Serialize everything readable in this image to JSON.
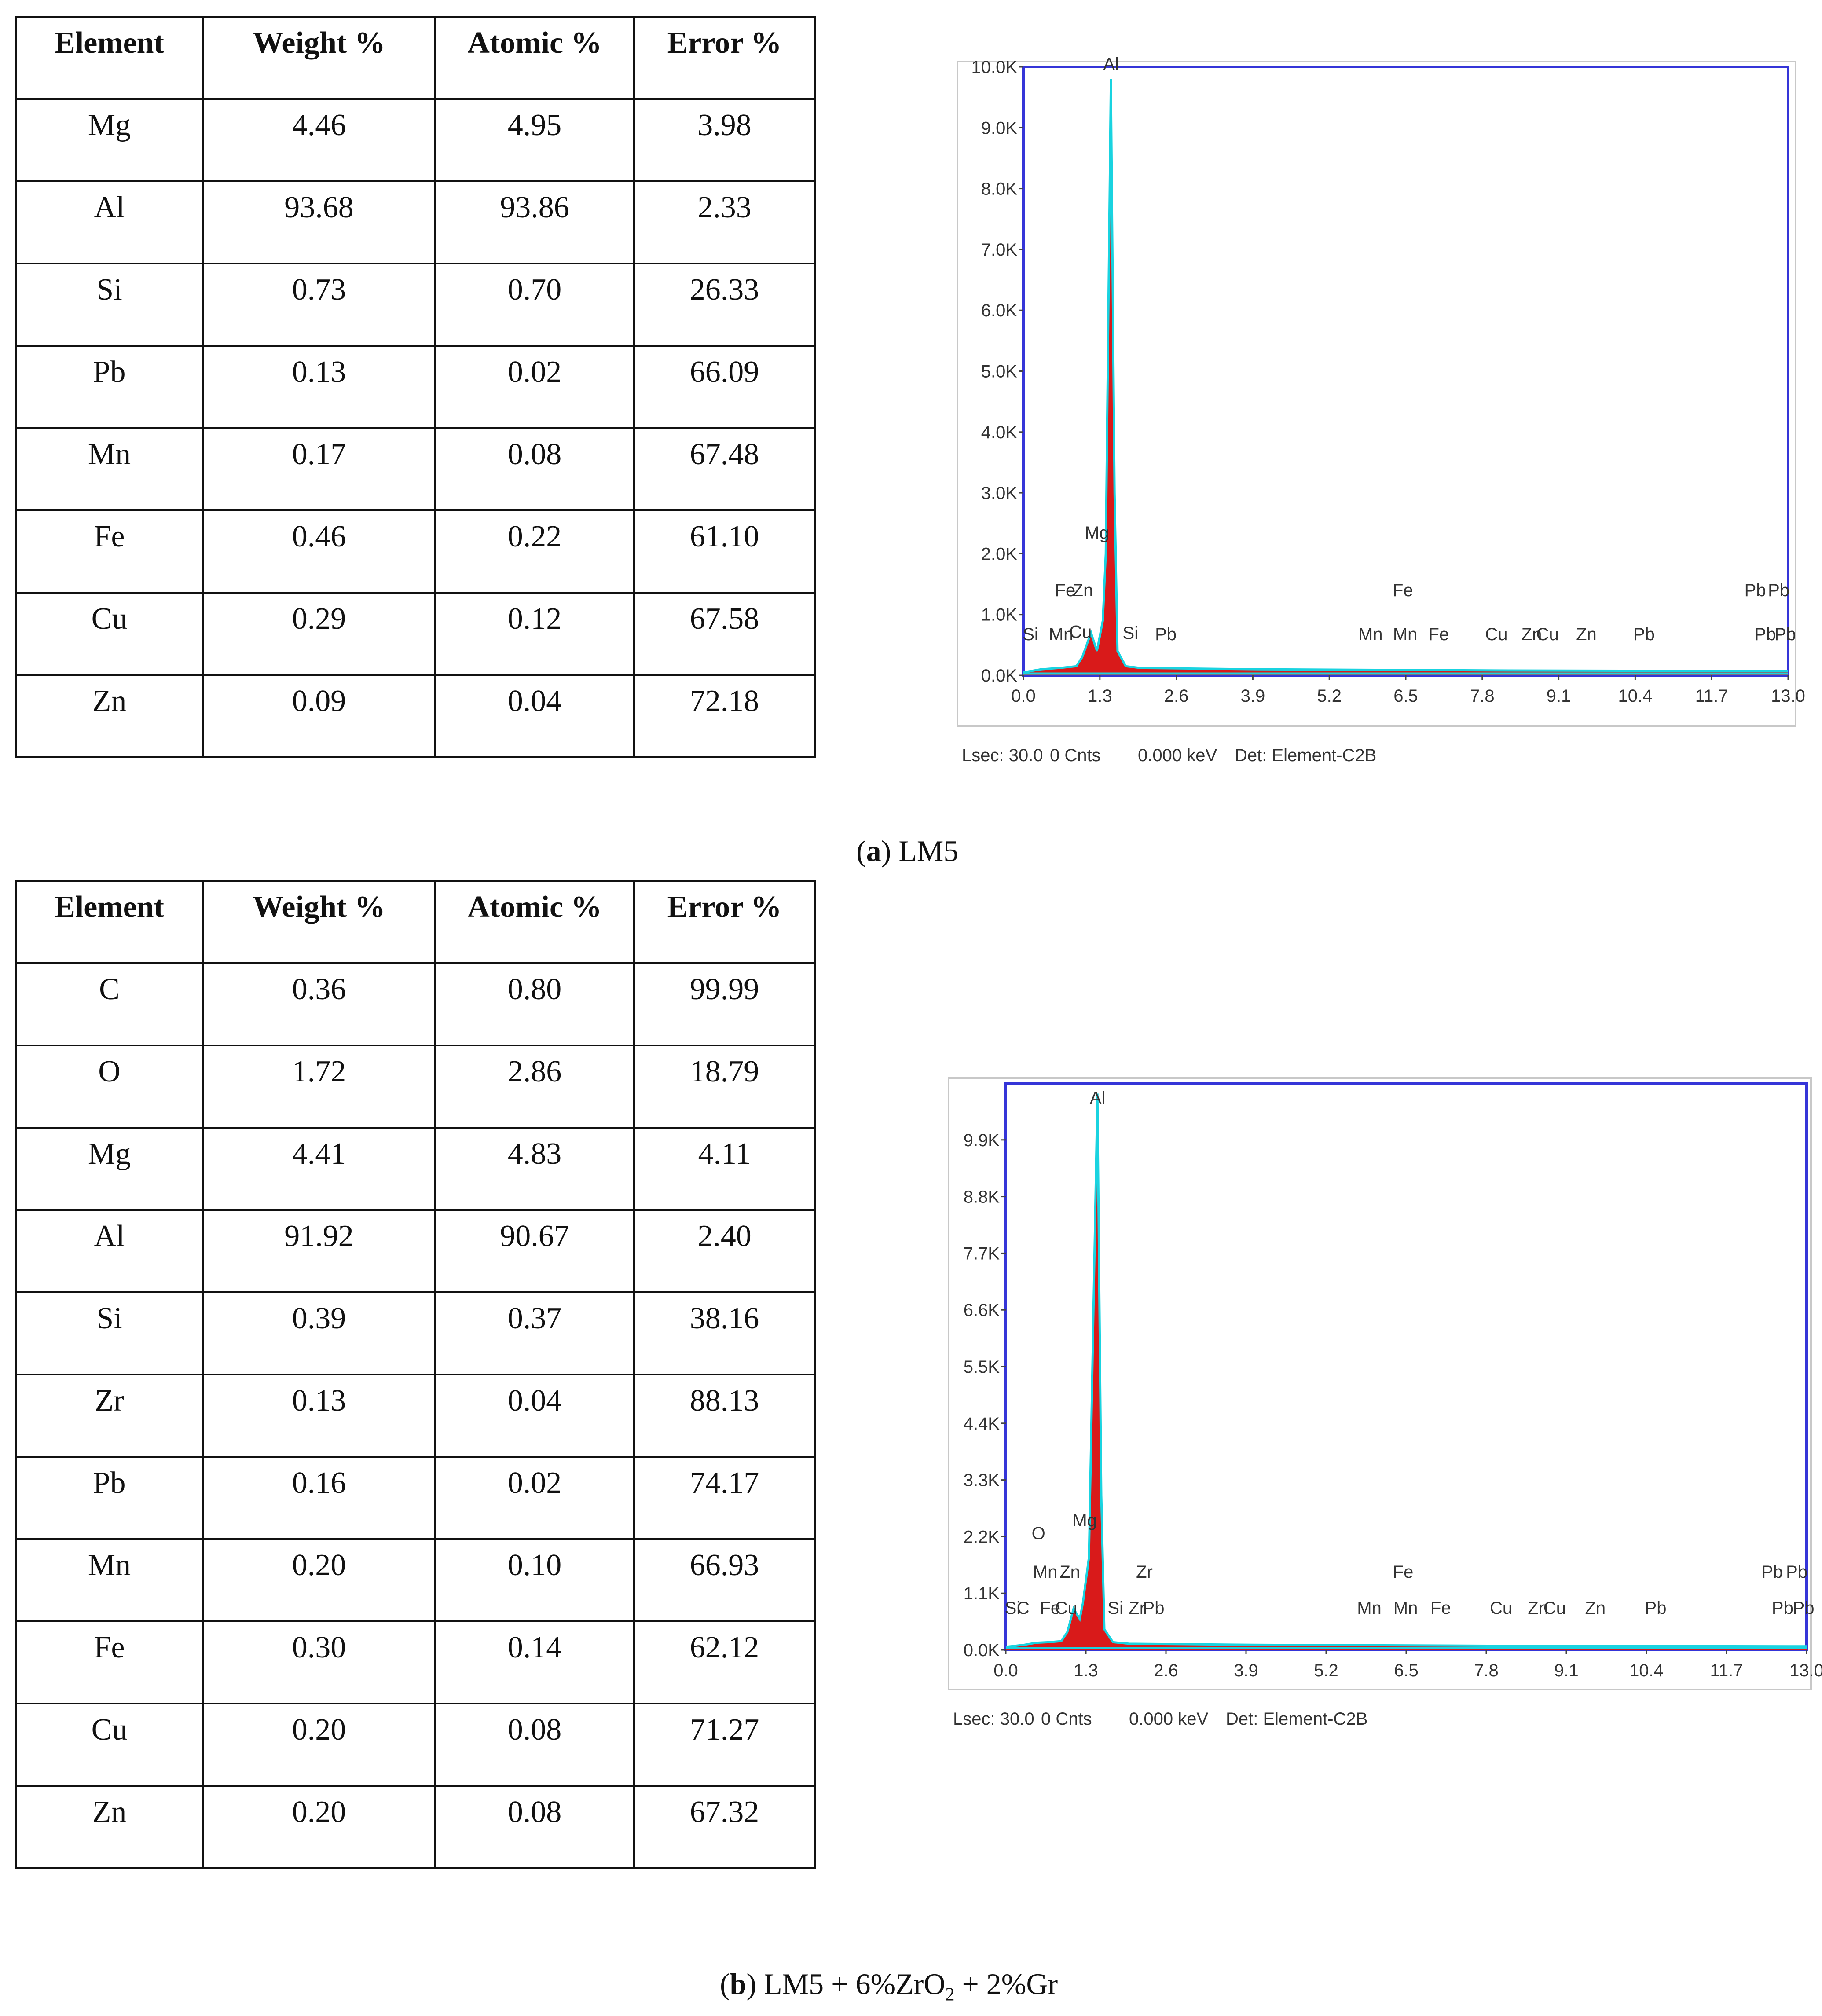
{
  "tables": [
    {
      "headers": [
        "Element",
        "Weight %",
        "Atomic %",
        "Error %"
      ],
      "rows": [
        [
          "Mg",
          "4.46",
          "4.95",
          "3.98"
        ],
        [
          "Al",
          "93.68",
          "93.86",
          "2.33"
        ],
        [
          "Si",
          "0.73",
          "0.70",
          "26.33"
        ],
        [
          "Pb",
          "0.13",
          "0.02",
          "66.09"
        ],
        [
          "Mn",
          "0.17",
          "0.08",
          "67.48"
        ],
        [
          "Fe",
          "0.46",
          "0.22",
          "61.10"
        ],
        [
          "Cu",
          "0.29",
          "0.12",
          "67.58"
        ],
        [
          "Zn",
          "0.09",
          "0.04",
          "72.18"
        ]
      ]
    },
    {
      "headers": [
        "Element",
        "Weight %",
        "Atomic %",
        "Error %"
      ],
      "rows": [
        [
          "C",
          "0.36",
          "0.80",
          "99.99"
        ],
        [
          "O",
          "1.72",
          "2.86",
          "18.79"
        ],
        [
          "Mg",
          "4.41",
          "4.83",
          "4.11"
        ],
        [
          "Al",
          "91.92",
          "90.67",
          "2.40"
        ],
        [
          "Si",
          "0.39",
          "0.37",
          "38.16"
        ],
        [
          "Zr",
          "0.13",
          "0.04",
          "88.13"
        ],
        [
          "Pb",
          "0.16",
          "0.02",
          "74.17"
        ],
        [
          "Mn",
          "0.20",
          "0.10",
          "66.93"
        ],
        [
          "Fe",
          "0.30",
          "0.14",
          "62.12"
        ],
        [
          "Cu",
          "0.20",
          "0.08",
          "71.27"
        ],
        [
          "Zn",
          "0.20",
          "0.08",
          "67.32"
        ]
      ]
    }
  ],
  "captions": {
    "a": {
      "label": "a",
      "text": "LM5"
    },
    "b": {
      "label": "b",
      "text": "LM5 + 6%ZrO",
      "sub": "2",
      "text2": " + 2%Gr"
    }
  },
  "chart_data": [
    {
      "type": "line",
      "series": [
        {
          "x": [
            0.0,
            0.3,
            0.6,
            0.9,
            1.0,
            1.15,
            1.25,
            1.35,
            1.4,
            1.487,
            1.55,
            1.6,
            1.74,
            2.0,
            4.0,
            8.0,
            13.0
          ],
          "y": [
            50,
            100,
            120,
            150,
            300,
            700,
            400,
            900,
            2000,
            9800,
            3000,
            400,
            150,
            120,
            100,
            80,
            70
          ]
        }
      ],
      "xticks": [
        "0.0",
        "1.3",
        "2.6",
        "3.9",
        "5.2",
        "6.5",
        "7.8",
        "9.1",
        "10.4",
        "11.7",
        "13.0"
      ],
      "yticks": [
        "0.0K",
        "1.0K",
        "2.0K",
        "3.0K",
        "4.0K",
        "5.0K",
        "6.0K",
        "7.0K",
        "8.0K",
        "9.0K",
        "10.0K"
      ],
      "xlim": [
        0,
        13.0
      ],
      "ylim": [
        0,
        10000
      ],
      "peak_labels": [
        {
          "text": "Al",
          "x": 1.49,
          "y": 9950
        },
        {
          "text": "Mg",
          "x": 1.25,
          "y": 2250
        },
        {
          "text": "Fe",
          "x": 0.71,
          "y": 1300
        },
        {
          "text": "Zn",
          "x": 1.01,
          "y": 1300
        },
        {
          "text": "Si",
          "x": 0.12,
          "y": 580
        },
        {
          "text": "Mn",
          "x": 0.64,
          "y": 580
        },
        {
          "text": "Cu",
          "x": 0.97,
          "y": 620
        },
        {
          "text": "Si",
          "x": 1.82,
          "y": 600
        },
        {
          "text": "Pb",
          "x": 2.42,
          "y": 580
        },
        {
          "text": "Fe",
          "x": 6.45,
          "y": 1300
        },
        {
          "text": "Mn",
          "x": 5.9,
          "y": 580
        },
        {
          "text": "Mn",
          "x": 6.49,
          "y": 580
        },
        {
          "text": "Fe",
          "x": 7.06,
          "y": 580
        },
        {
          "text": "Cu",
          "x": 8.04,
          "y": 580
        },
        {
          "text": "Zn",
          "x": 8.64,
          "y": 580
        },
        {
          "text": "Cu",
          "x": 8.91,
          "y": 580
        },
        {
          "text": "Zn",
          "x": 9.57,
          "y": 580
        },
        {
          "text": "Pb",
          "x": 10.55,
          "y": 580
        },
        {
          "text": "Pb",
          "x": 12.44,
          "y": 1300
        },
        {
          "text": "Pb",
          "x": 12.84,
          "y": 1300
        },
        {
          "text": "Pb",
          "x": 12.61,
          "y": 580
        },
        {
          "text": "Pb",
          "x": 12.95,
          "y": 580
        }
      ],
      "footer": [
        "Lsec: 30.0",
        "0 Cnts",
        "0.000 keV",
        "Det: Element-C2B"
      ]
    },
    {
      "type": "line",
      "series": [
        {
          "x": [
            0.0,
            0.3,
            0.5,
            0.7,
            0.9,
            1.0,
            1.1,
            1.2,
            1.25,
            1.35,
            1.487,
            1.55,
            1.6,
            1.74,
            2.0,
            4.0,
            8.0,
            13.0
          ],
          "y": [
            60,
            100,
            140,
            150,
            170,
            350,
            800,
            600,
            900,
            1800,
            10800,
            3000,
            400,
            150,
            120,
            100,
            80,
            70
          ]
        }
      ],
      "xticks": [
        "0.0",
        "1.3",
        "2.6",
        "3.9",
        "5.2",
        "6.5",
        "7.8",
        "9.1",
        "10.4",
        "11.7",
        "13.0"
      ],
      "yticks": [
        "0.0K",
        "1.1K",
        "2.2K",
        "3.3K",
        "4.4K",
        "5.5K",
        "6.6K",
        "7.7K",
        "8.8K",
        "9.9K"
      ],
      "xlim": [
        0,
        13.0
      ],
      "ylim": [
        0,
        11000
      ],
      "peak_labels": [
        {
          "text": "Al",
          "x": 1.49,
          "y": 10600
        },
        {
          "text": "Mg",
          "x": 1.28,
          "y": 2400
        },
        {
          "text": "O",
          "x": 0.53,
          "y": 2150
        },
        {
          "text": "Mn",
          "x": 0.64,
          "y": 1400
        },
        {
          "text": "Zn",
          "x": 1.04,
          "y": 1400
        },
        {
          "text": "Zr",
          "x": 2.25,
          "y": 1400
        },
        {
          "text": "Si",
          "x": 0.11,
          "y": 700
        },
        {
          "text": "C",
          "x": 0.28,
          "y": 700
        },
        {
          "text": "Fe",
          "x": 0.72,
          "y": 700
        },
        {
          "text": "Cu",
          "x": 0.98,
          "y": 700
        },
        {
          "text": "Si",
          "x": 1.78,
          "y": 700
        },
        {
          "text": "Zr",
          "x": 2.13,
          "y": 700
        },
        {
          "text": "Pb",
          "x": 2.4,
          "y": 700
        },
        {
          "text": "Fe",
          "x": 6.45,
          "y": 1400
        },
        {
          "text": "Mn",
          "x": 5.9,
          "y": 700
        },
        {
          "text": "Mn",
          "x": 6.49,
          "y": 700
        },
        {
          "text": "Fe",
          "x": 7.06,
          "y": 700
        },
        {
          "text": "Cu",
          "x": 8.04,
          "y": 700
        },
        {
          "text": "Zn",
          "x": 8.64,
          "y": 700
        },
        {
          "text": "Cu",
          "x": 8.91,
          "y": 700
        },
        {
          "text": "Zn",
          "x": 9.57,
          "y": 700
        },
        {
          "text": "Pb",
          "x": 10.55,
          "y": 700
        },
        {
          "text": "Pb",
          "x": 12.44,
          "y": 1400
        },
        {
          "text": "Pb",
          "x": 12.84,
          "y": 1400
        },
        {
          "text": "Pb",
          "x": 12.61,
          "y": 700
        },
        {
          "text": "Pb",
          "x": 12.95,
          "y": 700
        }
      ],
      "footer": [
        "Lsec: 30.0",
        "0 Cnts",
        "0.000 keV",
        "Det: Element-C2B"
      ]
    }
  ]
}
